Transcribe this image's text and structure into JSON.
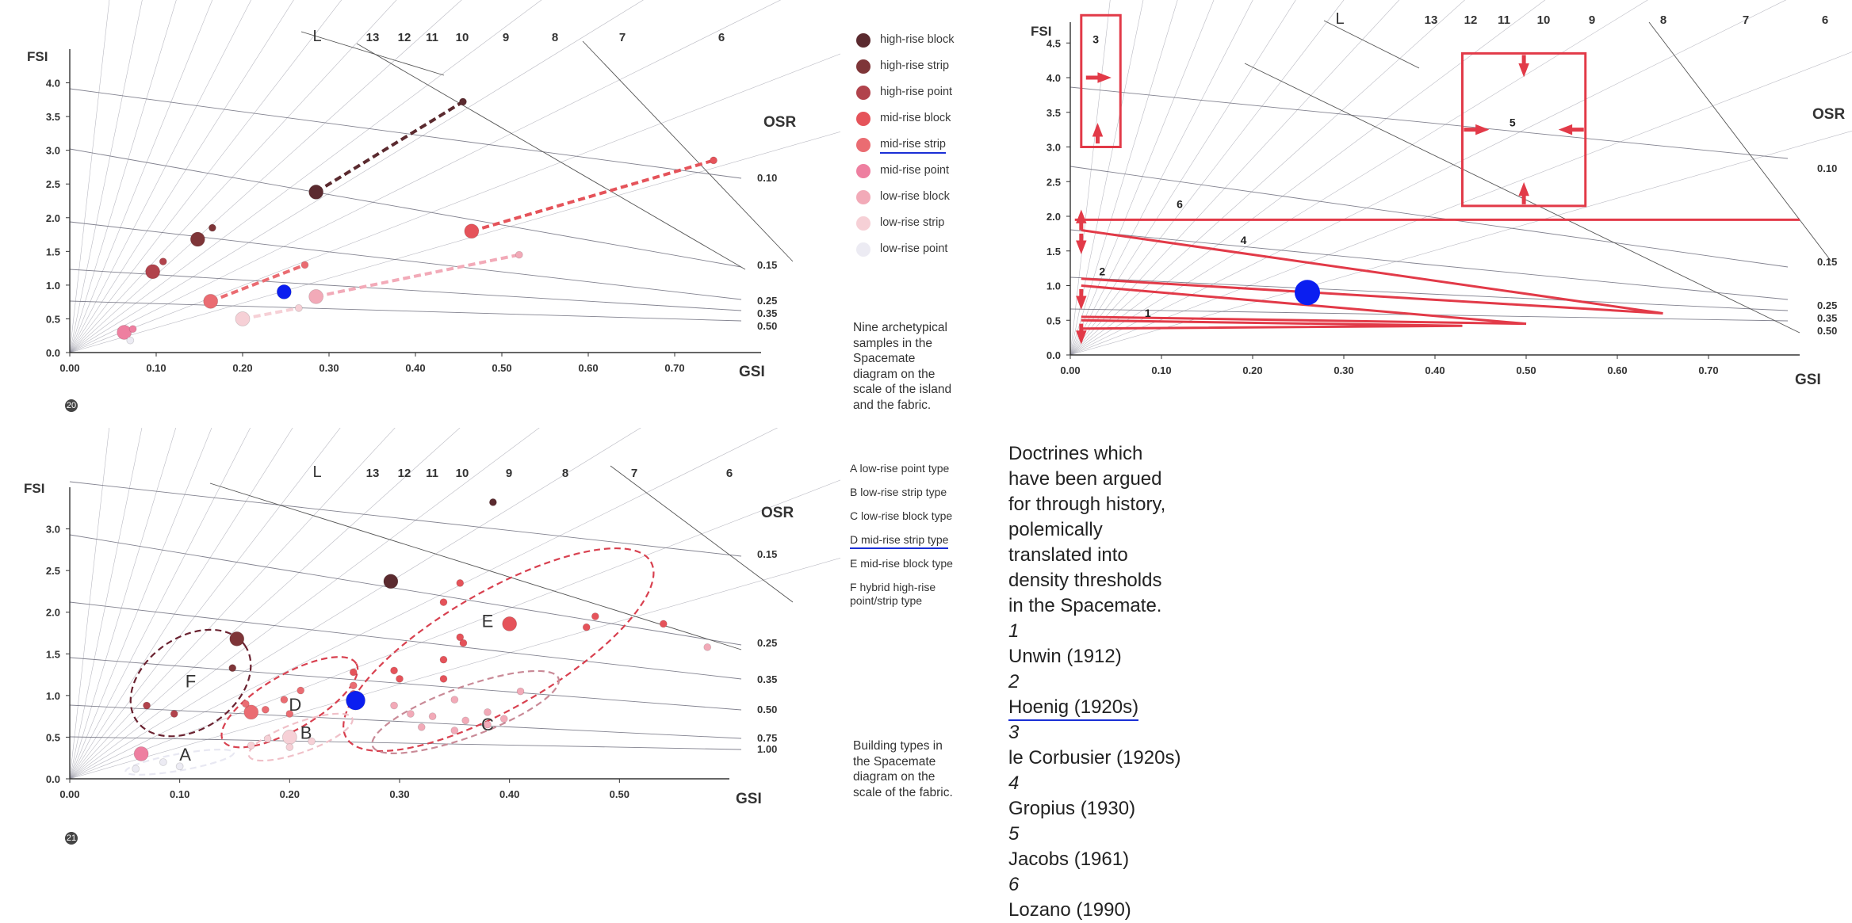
{
  "chart_data": [
    {
      "type": "scatter",
      "title": "",
      "xlabel": "GSI",
      "ylabel": "FSI",
      "xlim": [
        0,
        0.8
      ],
      "ylim": [
        0,
        4.5
      ],
      "x_ticks": [
        "0.00",
        "0.10",
        "0.20",
        "0.30",
        "0.40",
        "0.50",
        "0.60",
        "0.70"
      ],
      "y_ticks": [
        "0.0",
        "0.5",
        "1.0",
        "1.5",
        "2.0",
        "2.5",
        "3.0",
        "3.5",
        "4.0"
      ],
      "osr_label": "OSR",
      "osr_values": [
        "0.10",
        "0.15",
        "0.25",
        "0.35",
        "0.50"
      ],
      "l_label": "L",
      "l_values": [
        "13",
        "12",
        "11",
        "10",
        "9",
        "8",
        "7",
        "6"
      ],
      "page_mark": "20",
      "points": [
        {
          "series": "high-rise block",
          "x": 0.455,
          "y": 3.72,
          "size": 9
        },
        {
          "series": "high-rise block",
          "x": 0.285,
          "y": 2.38,
          "size": 16
        },
        {
          "series": "high-rise strip",
          "x": 0.148,
          "y": 1.68,
          "size": 16
        },
        {
          "series": "high-rise strip",
          "x": 0.165,
          "y": 1.85,
          "size": 9
        },
        {
          "series": "high-rise point",
          "x": 0.096,
          "y": 1.2,
          "size": 16
        },
        {
          "series": "high-rise point",
          "x": 0.108,
          "y": 1.35,
          "size": 9
        },
        {
          "series": "mid-rise block",
          "x": 0.465,
          "y": 1.8,
          "size": 16
        },
        {
          "series": "mid-rise block",
          "x": 0.745,
          "y": 2.85,
          "size": 9
        },
        {
          "series": "mid-rise strip",
          "x": 0.163,
          "y": 0.76,
          "size": 16
        },
        {
          "series": "mid-rise strip",
          "x": 0.272,
          "y": 1.3,
          "size": 9
        },
        {
          "series": "mid-rise point",
          "x": 0.063,
          "y": 0.3,
          "size": 16
        },
        {
          "series": "mid-rise point",
          "x": 0.073,
          "y": 0.35,
          "size": 9
        },
        {
          "series": "low-rise block",
          "x": 0.285,
          "y": 0.83,
          "size": 16
        },
        {
          "series": "low-rise block",
          "x": 0.52,
          "y": 1.45,
          "size": 9
        },
        {
          "series": "low-rise strip",
          "x": 0.2,
          "y": 0.5,
          "size": 16
        },
        {
          "series": "low-rise strip",
          "x": 0.265,
          "y": 0.66,
          "size": 9
        },
        {
          "series": "low-rise point",
          "x": 0.07,
          "y": 0.18,
          "size": 9
        },
        {
          "series": "highlight",
          "x": 0.248,
          "y": 0.9,
          "size": 16
        }
      ],
      "trend_lines": [
        {
          "series": "high-rise block",
          "from": [
            0.285,
            2.38
          ],
          "to": [
            0.455,
            3.72
          ]
        },
        {
          "series": "mid-rise block",
          "from": [
            0.465,
            1.8
          ],
          "to": [
            0.745,
            2.85
          ]
        },
        {
          "series": "mid-rise strip",
          "from": [
            0.163,
            0.76
          ],
          "to": [
            0.272,
            1.3
          ]
        },
        {
          "series": "low-rise block",
          "from": [
            0.285,
            0.83
          ],
          "to": [
            0.52,
            1.45
          ]
        },
        {
          "series": "low-rise strip",
          "from": [
            0.2,
            0.5
          ],
          "to": [
            0.265,
            0.66
          ]
        }
      ]
    },
    {
      "type": "scatter",
      "title": "",
      "xlabel": "GSI",
      "ylabel": "FSI",
      "xlim": [
        0,
        0.6
      ],
      "ylim": [
        0,
        3.5
      ],
      "x_ticks": [
        "0.00",
        "0.10",
        "0.20",
        "0.30",
        "0.40",
        "0.50"
      ],
      "y_ticks": [
        "0.0",
        "0.5",
        "1.0",
        "1.5",
        "2.0",
        "2.5",
        "3.0"
      ],
      "osr_label": "OSR",
      "osr_values": [
        "0.15",
        "0.25",
        "0.35",
        "0.50",
        "0.75",
        "1.00"
      ],
      "l_label": "L",
      "l_values": [
        "13",
        "12",
        "11",
        "10",
        "9",
        "8",
        "7",
        "6"
      ],
      "page_mark": "21",
      "cluster_labels": [
        "A",
        "B",
        "C",
        "D",
        "E",
        "F"
      ],
      "points": [
        {
          "series": "high-rise block",
          "x": 0.385,
          "y": 3.32,
          "size": 9
        },
        {
          "series": "high-rise block",
          "x": 0.292,
          "y": 2.37,
          "size": 16
        },
        {
          "series": "high-rise strip",
          "x": 0.152,
          "y": 1.68,
          "size": 16
        },
        {
          "series": "high-rise strip",
          "x": 0.148,
          "y": 1.33,
          "size": 9
        },
        {
          "series": "high-rise point",
          "x": 0.07,
          "y": 0.88,
          "size": 9
        },
        {
          "series": "high-rise point",
          "x": 0.095,
          "y": 0.78,
          "size": 9
        },
        {
          "series": "mid-rise block",
          "x": 0.4,
          "y": 1.86,
          "size": 16
        },
        {
          "series": "mid-rise block",
          "x": 0.34,
          "y": 2.12,
          "size": 9
        },
        {
          "series": "mid-rise block",
          "x": 0.355,
          "y": 2.35,
          "size": 9
        },
        {
          "series": "mid-rise block",
          "x": 0.355,
          "y": 1.7,
          "size": 9
        },
        {
          "series": "mid-rise block",
          "x": 0.358,
          "y": 1.63,
          "size": 9
        },
        {
          "series": "mid-rise block",
          "x": 0.34,
          "y": 1.43,
          "size": 9
        },
        {
          "series": "mid-rise block",
          "x": 0.47,
          "y": 1.82,
          "size": 9
        },
        {
          "series": "mid-rise block",
          "x": 0.478,
          "y": 1.95,
          "size": 9
        },
        {
          "series": "mid-rise block",
          "x": 0.54,
          "y": 1.86,
          "size": 9
        },
        {
          "series": "mid-rise block",
          "x": 0.34,
          "y": 1.2,
          "size": 9
        },
        {
          "series": "mid-rise block",
          "x": 0.295,
          "y": 1.3,
          "size": 9
        },
        {
          "series": "mid-rise block",
          "x": 0.3,
          "y": 1.2,
          "size": 9
        },
        {
          "series": "mid-rise block",
          "x": 0.258,
          "y": 1.28,
          "size": 9
        },
        {
          "series": "mid-rise strip",
          "x": 0.165,
          "y": 0.8,
          "size": 16
        },
        {
          "series": "mid-rise strip",
          "x": 0.16,
          "y": 0.9,
          "size": 9
        },
        {
          "series": "mid-rise strip",
          "x": 0.178,
          "y": 0.83,
          "size": 9
        },
        {
          "series": "mid-rise strip",
          "x": 0.195,
          "y": 0.95,
          "size": 9
        },
        {
          "series": "mid-rise strip",
          "x": 0.21,
          "y": 1.06,
          "size": 9
        },
        {
          "series": "mid-rise strip",
          "x": 0.2,
          "y": 0.78,
          "size": 9
        },
        {
          "series": "mid-rise strip",
          "x": 0.258,
          "y": 1.12,
          "size": 9
        },
        {
          "series": "mid-rise strip",
          "x": 0.258,
          "y": 1.02,
          "size": 9
        },
        {
          "series": "mid-rise point",
          "x": 0.065,
          "y": 0.3,
          "size": 16
        },
        {
          "series": "low-rise block",
          "x": 0.295,
          "y": 0.88,
          "size": 9
        },
        {
          "series": "low-rise block",
          "x": 0.31,
          "y": 0.78,
          "size": 9
        },
        {
          "series": "low-rise block",
          "x": 0.35,
          "y": 0.95,
          "size": 9
        },
        {
          "series": "low-rise block",
          "x": 0.38,
          "y": 0.8,
          "size": 9
        },
        {
          "series": "low-rise block",
          "x": 0.36,
          "y": 0.7,
          "size": 9
        },
        {
          "series": "low-rise block",
          "x": 0.33,
          "y": 0.75,
          "size": 9
        },
        {
          "series": "low-rise block",
          "x": 0.32,
          "y": 0.62,
          "size": 9
        },
        {
          "series": "low-rise block",
          "x": 0.35,
          "y": 0.58,
          "size": 9
        },
        {
          "series": "low-rise block",
          "x": 0.38,
          "y": 0.65,
          "size": 9
        },
        {
          "series": "low-rise block",
          "x": 0.395,
          "y": 0.72,
          "size": 9
        },
        {
          "series": "low-rise block",
          "x": 0.41,
          "y": 1.05,
          "size": 9
        },
        {
          "series": "low-rise block",
          "x": 0.58,
          "y": 1.58,
          "size": 9
        },
        {
          "series": "low-rise strip",
          "x": 0.2,
          "y": 0.5,
          "size": 16
        },
        {
          "series": "low-rise strip",
          "x": 0.2,
          "y": 0.38,
          "size": 9
        },
        {
          "series": "low-rise strip",
          "x": 0.22,
          "y": 0.45,
          "size": 9
        },
        {
          "series": "low-rise strip",
          "x": 0.165,
          "y": 0.4,
          "size": 9
        },
        {
          "series": "low-rise strip",
          "x": 0.18,
          "y": 0.48,
          "size": 9
        },
        {
          "series": "low-rise point",
          "x": 0.085,
          "y": 0.2,
          "size": 9
        },
        {
          "series": "low-rise point",
          "x": 0.1,
          "y": 0.15,
          "size": 9
        },
        {
          "series": "low-rise point",
          "x": 0.06,
          "y": 0.12,
          "size": 9
        },
        {
          "series": "highlight",
          "x": 0.26,
          "y": 0.94,
          "size": 22
        }
      ],
      "clusters": [
        {
          "label": "F",
          "cx": 0.11,
          "cy": 1.15,
          "rx": 0.06,
          "ry": 0.55,
          "rot": -35,
          "color": "#6a2230"
        },
        {
          "label": "D",
          "cx": 0.2,
          "cy": 0.92,
          "rx": 0.07,
          "ry": 0.33,
          "rot": -30,
          "color": "#d8404f"
        },
        {
          "label": "E",
          "cx": 0.39,
          "cy": 1.55,
          "rx": 0.16,
          "ry": 0.7,
          "rot": -30,
          "color": "#d8404f"
        },
        {
          "label": "C",
          "cx": 0.36,
          "cy": 0.8,
          "rx": 0.09,
          "ry": 0.3,
          "rot": -20,
          "color": "#c98a97"
        },
        {
          "label": "B",
          "cx": 0.21,
          "cy": 0.5,
          "rx": 0.05,
          "ry": 0.18,
          "rot": -20,
          "color": "#f0c0c8"
        },
        {
          "label": "A",
          "cx": 0.1,
          "cy": 0.2,
          "rx": 0.05,
          "ry": 0.1,
          "rot": -10,
          "color": "#e8e8f2"
        }
      ],
      "cluster_label_positions": {
        "A": [
          0.105,
          0.22
        ],
        "B": [
          0.215,
          0.48
        ],
        "C": [
          0.38,
          0.58
        ],
        "D": [
          0.205,
          0.82
        ],
        "E": [
          0.38,
          1.82
        ],
        "F": [
          0.11,
          1.1
        ]
      }
    },
    {
      "type": "line",
      "title": "",
      "xlabel": "GSI",
      "ylabel": "FSI",
      "xlim": [
        0,
        0.8
      ],
      "ylim": [
        0,
        4.8
      ],
      "x_ticks": [
        "0.00",
        "0.10",
        "0.20",
        "0.30",
        "0.40",
        "0.50",
        "0.60",
        "0.70"
      ],
      "y_ticks": [
        "0.0",
        "0.5",
        "1.0",
        "1.5",
        "2.0",
        "2.5",
        "3.0",
        "3.5",
        "4.0",
        "4.5"
      ],
      "osr_label": "OSR",
      "osr_values": [
        "0.10",
        "0.15",
        "0.25",
        "0.35",
        "0.50"
      ],
      "l_label": "L",
      "l_values": [
        "13",
        "12",
        "11",
        "10",
        "9",
        "8",
        "7",
        "6"
      ],
      "doctrine_labels": [
        "1",
        "2",
        "3",
        "4",
        "5",
        "6"
      ],
      "highlight_point": {
        "x": 0.26,
        "y": 0.9
      },
      "doctrine_6_fsi": 1.95,
      "doctrine_5_box": {
        "x0": 0.43,
        "x1": 0.565,
        "y0": 2.15,
        "y1": 4.35
      },
      "doctrine_3_box": {
        "x0": 0.012,
        "x1": 0.055,
        "y0": 3.0,
        "y1": 4.9
      }
    }
  ],
  "legend": {
    "items": [
      {
        "label": "high-rise block",
        "color": "#5b2a2f"
      },
      {
        "label": "high-rise strip",
        "color": "#7e3538"
      },
      {
        "label": "high-rise point",
        "color": "#b1434c"
      },
      {
        "label": "mid-rise block",
        "color": "#e5535a"
      },
      {
        "label": "mid-rise strip",
        "color": "#ea6c72"
      },
      {
        "label": "mid-rise point",
        "color": "#ee7fa0"
      },
      {
        "label": "low-rise block",
        "color": "#f2aab8"
      },
      {
        "label": "low-rise strip",
        "color": "#f6d0d6"
      },
      {
        "label": "low-rise point",
        "color": "#ecebf3"
      }
    ]
  },
  "colors": {
    "highlight": "#0b1ef0",
    "doctrine_red": "#e23a48",
    "grid": "#8c8c9a",
    "underline": "#1a2fd6"
  },
  "caption_top": [
    "Nine archetypical",
    "samples in the",
    "Spacemate",
    "diagram on the",
    "scale of the island",
    "and the fabric."
  ],
  "types_list": [
    "A  low-rise point type",
    "B  low-rise strip type",
    "C  low-rise block type",
    "D  mid-rise strip type",
    "E  mid-rise block type",
    "F  hybrid high-rise point/strip type"
  ],
  "caption_bottom": [
    "Building types in",
    "the Spacemate",
    "diagram on the",
    "scale of the fabric."
  ],
  "doctrines": {
    "intro": [
      "Doctrines which",
      "have been argued",
      "for through history,",
      "polemically",
      "translated into",
      "density thresholds",
      "in the Spacemate."
    ],
    "items": [
      {
        "num": "1",
        "name": "Unwin (1912)"
      },
      {
        "num": "2",
        "name": "Hoenig (1920s)"
      },
      {
        "num": "3",
        "name": "le Corbusier (1920s)"
      },
      {
        "num": "4",
        "name": "Gropius (1930)"
      },
      {
        "num": "5",
        "name": "Jacobs (1961)"
      },
      {
        "num": "6",
        "name": "Lozano (1990)"
      }
    ]
  }
}
